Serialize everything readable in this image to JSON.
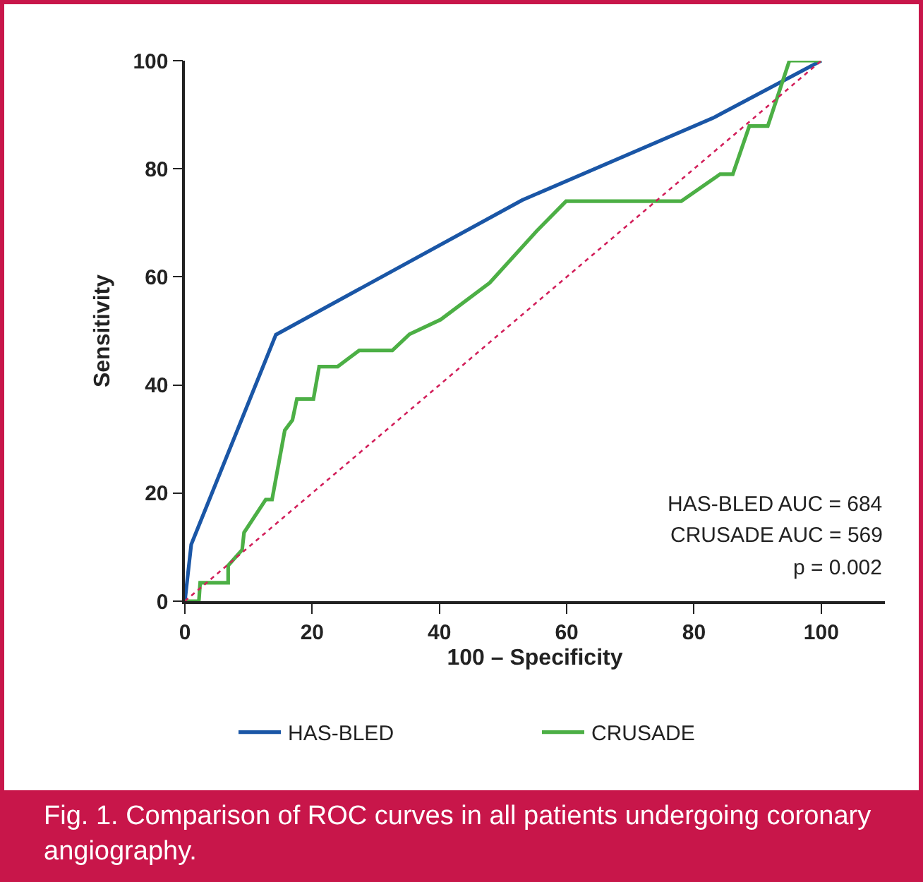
{
  "chart_data": {
    "type": "line",
    "xlabel": "100 – Specificity",
    "ylabel": "Sensitivity",
    "xlim": [
      0,
      110
    ],
    "xticks": [
      0,
      20,
      40,
      60,
      80,
      100
    ],
    "ylim": [
      0,
      100
    ],
    "yticks": [
      0,
      20,
      40,
      60,
      80,
      100
    ],
    "grid": false,
    "legend": "bottom",
    "marker": "none",
    "annotations": [
      "HAS-BLED AUC = 684",
      "CRUSADE AUC = 569",
      "p = 0.002",
      "Fig. 1. Comparison of ROC curves in all patients undergoing coronary angiography."
    ],
    "series": [
      {
        "name": "HAS-BLED",
        "color": "#1a56a6",
        "line_style": "solid",
        "x": [
          0,
          1,
          14.3,
          53,
          83,
          100
        ],
        "values": [
          0,
          10.5,
          49.3,
          74.2,
          89.4,
          100
        ]
      },
      {
        "name": "CRUSADE",
        "color": "#4caf45",
        "line_style": "solid",
        "x": [
          0,
          2.2,
          2.4,
          6.8,
          6.8,
          9,
          9.3,
          12.7,
          13.7,
          15.7,
          16.9,
          17.6,
          20.2,
          21.1,
          24,
          27.4,
          32.6,
          35.3,
          40.2,
          47.9,
          55.3,
          59.9,
          78,
          84.1,
          86.1,
          88.7,
          91.6,
          95,
          100
        ],
        "values": [
          0,
          0,
          3.4,
          3.4,
          6.6,
          9.5,
          12.7,
          18.8,
          18.8,
          31.6,
          33.5,
          37.4,
          37.4,
          43.4,
          43.4,
          46.4,
          46.4,
          49.4,
          52.1,
          58.9,
          68.5,
          74,
          74,
          79,
          79,
          87.9,
          87.9,
          100,
          100
        ]
      },
      {
        "color": "#d21f5a",
        "line_style": "dotted",
        "x": [
          0,
          100
        ],
        "values": [
          0,
          100
        ]
      }
    ]
  }
}
